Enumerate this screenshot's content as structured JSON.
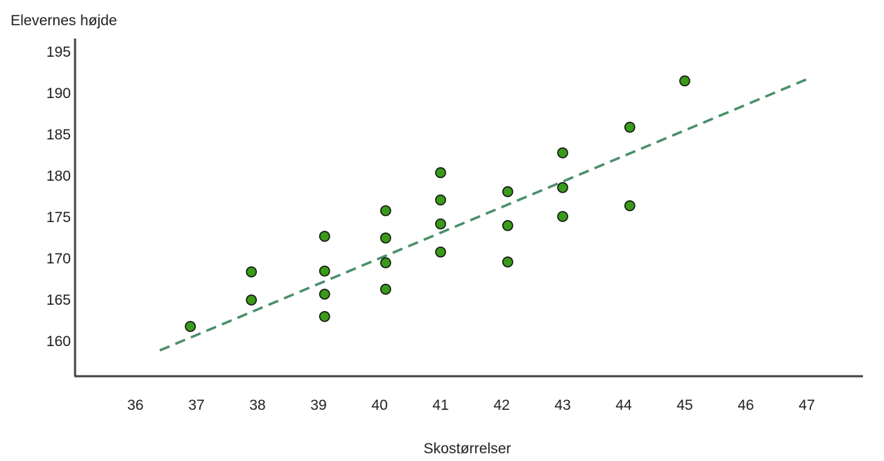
{
  "chart_data": {
    "type": "scatter",
    "title": "",
    "xlabel": "Skostørrelser",
    "ylabel": "Elevernes højde",
    "x_ticks": [
      "36",
      "37",
      "38",
      "39",
      "40",
      "41",
      "42",
      "43",
      "44",
      "45",
      "46",
      "47"
    ],
    "y_ticks": [
      "160",
      "165",
      "170",
      "175",
      "180",
      "185",
      "190",
      "195"
    ],
    "xlim": [
      35.2,
      48.0
    ],
    "ylim": [
      156,
      196
    ],
    "grid": false,
    "legend": "none",
    "points": [
      {
        "x": 36.9,
        "y": 161.7
      },
      {
        "x": 37.9,
        "y": 168.3
      },
      {
        "x": 37.9,
        "y": 164.9
      },
      {
        "x": 39.1,
        "y": 172.6
      },
      {
        "x": 39.1,
        "y": 168.4
      },
      {
        "x": 39.1,
        "y": 165.6
      },
      {
        "x": 39.1,
        "y": 162.9
      },
      {
        "x": 40.1,
        "y": 175.7
      },
      {
        "x": 40.1,
        "y": 172.4
      },
      {
        "x": 40.1,
        "y": 169.4
      },
      {
        "x": 40.1,
        "y": 166.2
      },
      {
        "x": 41.0,
        "y": 180.3
      },
      {
        "x": 41.0,
        "y": 177.0
      },
      {
        "x": 41.0,
        "y": 174.1
      },
      {
        "x": 41.0,
        "y": 170.7
      },
      {
        "x": 42.1,
        "y": 178.0
      },
      {
        "x": 42.1,
        "y": 173.9
      },
      {
        "x": 42.1,
        "y": 169.5
      },
      {
        "x": 43.0,
        "y": 182.7
      },
      {
        "x": 43.0,
        "y": 178.5
      },
      {
        "x": 43.0,
        "y": 175.0
      },
      {
        "x": 44.1,
        "y": 185.8
      },
      {
        "x": 44.1,
        "y": 176.3
      },
      {
        "x": 45.0,
        "y": 191.4
      }
    ],
    "trendline": {
      "style": "dashed",
      "x": [
        36.4,
        47.0
      ],
      "y": [
        158.8,
        191.6
      ]
    },
    "colors": {
      "point_fill": "#3a9a1a",
      "point_stroke": "#111111",
      "trendline": "#4a8f6a",
      "axis": "#444444"
    }
  }
}
